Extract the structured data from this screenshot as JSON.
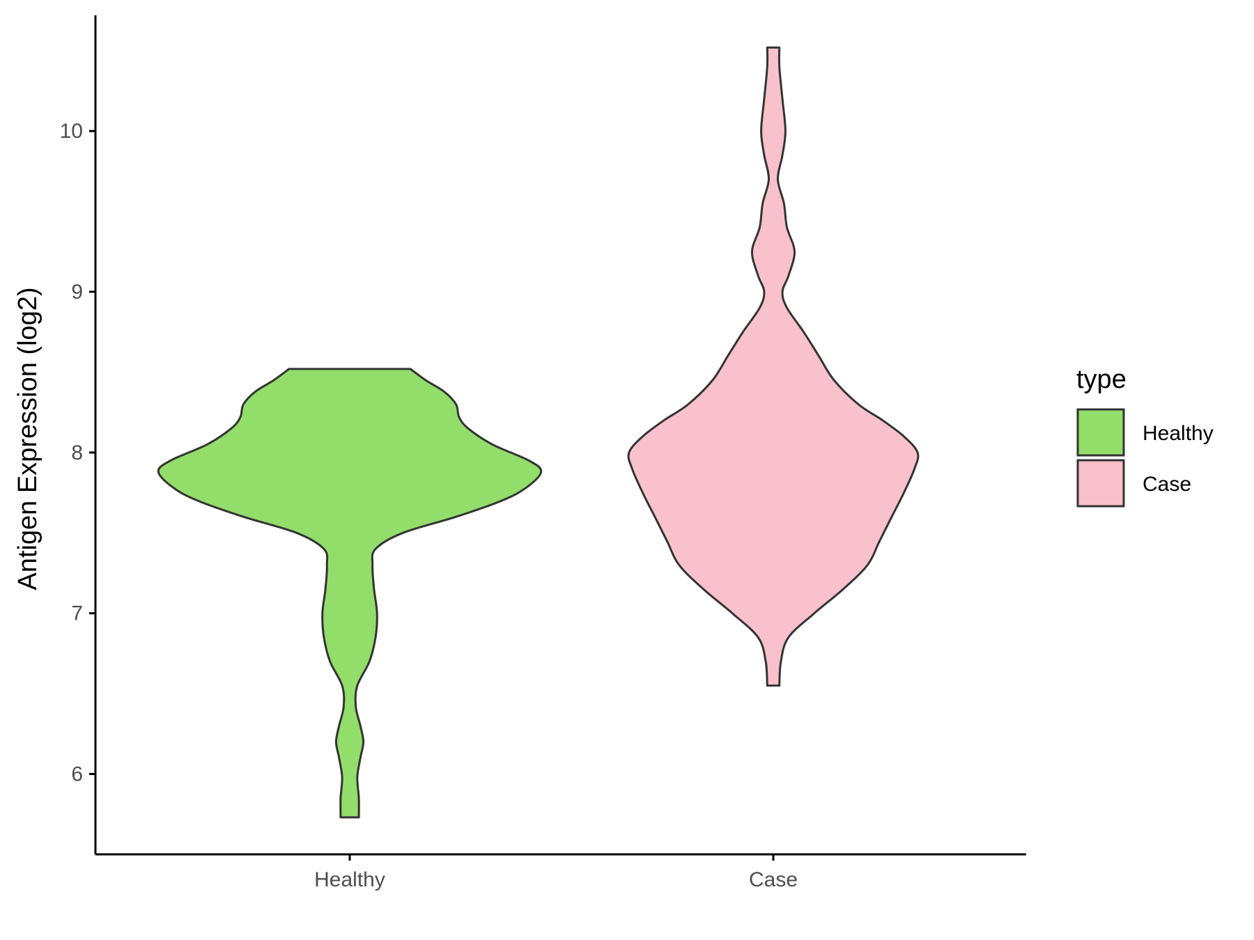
{
  "chart_data": {
    "type": "violin",
    "ylabel": "Antigen Expression (log2)",
    "xlabel": "",
    "categories": [
      "Healthy",
      "Case"
    ],
    "yticks": [
      6,
      7,
      8,
      9,
      10
    ],
    "ylim": [
      5.5,
      10.72
    ],
    "grid": false,
    "legend": {
      "title": "type",
      "position": "right",
      "items": [
        {
          "label": "Healthy",
          "color": "#93dd6b"
        },
        {
          "label": "Case",
          "color": "#f8c1cc"
        }
      ]
    },
    "series": [
      {
        "category": "Healthy",
        "color": "#93dd6b",
        "min": 5.73,
        "max": 8.52,
        "density": [
          [
            5.73,
            0.06
          ],
          [
            5.85,
            0.06
          ],
          [
            5.98,
            0.05
          ],
          [
            6.1,
            0.07
          ],
          [
            6.2,
            0.09
          ],
          [
            6.3,
            0.07
          ],
          [
            6.42,
            0.04
          ],
          [
            6.55,
            0.05
          ],
          [
            6.7,
            0.13
          ],
          [
            6.85,
            0.17
          ],
          [
            7.0,
            0.18
          ],
          [
            7.15,
            0.16
          ],
          [
            7.3,
            0.15
          ],
          [
            7.4,
            0.17
          ],
          [
            7.5,
            0.35
          ],
          [
            7.6,
            0.7
          ],
          [
            7.7,
            1.0
          ],
          [
            7.78,
            1.16
          ],
          [
            7.88,
            1.26
          ],
          [
            7.95,
            1.18
          ],
          [
            8.05,
            0.94
          ],
          [
            8.15,
            0.78
          ],
          [
            8.22,
            0.72
          ],
          [
            8.3,
            0.7
          ],
          [
            8.38,
            0.62
          ],
          [
            8.45,
            0.5
          ],
          [
            8.52,
            0.4
          ]
        ]
      },
      {
        "category": "Case",
        "color": "#f8c1cc",
        "min": 6.55,
        "max": 10.52,
        "density": [
          [
            6.55,
            0.04
          ],
          [
            6.7,
            0.05
          ],
          [
            6.85,
            0.1
          ],
          [
            7.0,
            0.27
          ],
          [
            7.15,
            0.46
          ],
          [
            7.3,
            0.62
          ],
          [
            7.45,
            0.7
          ],
          [
            7.6,
            0.78
          ],
          [
            7.75,
            0.86
          ],
          [
            7.9,
            0.93
          ],
          [
            8.0,
            0.95
          ],
          [
            8.1,
            0.86
          ],
          [
            8.2,
            0.72
          ],
          [
            8.3,
            0.56
          ],
          [
            8.45,
            0.4
          ],
          [
            8.6,
            0.3
          ],
          [
            8.75,
            0.2
          ],
          [
            8.9,
            0.09
          ],
          [
            9.0,
            0.06
          ],
          [
            9.1,
            0.1
          ],
          [
            9.25,
            0.14
          ],
          [
            9.4,
            0.09
          ],
          [
            9.55,
            0.07
          ],
          [
            9.7,
            0.03
          ],
          [
            9.85,
            0.06
          ],
          [
            10.0,
            0.08
          ],
          [
            10.2,
            0.06
          ],
          [
            10.4,
            0.04
          ],
          [
            10.52,
            0.04
          ]
        ]
      }
    ]
  }
}
